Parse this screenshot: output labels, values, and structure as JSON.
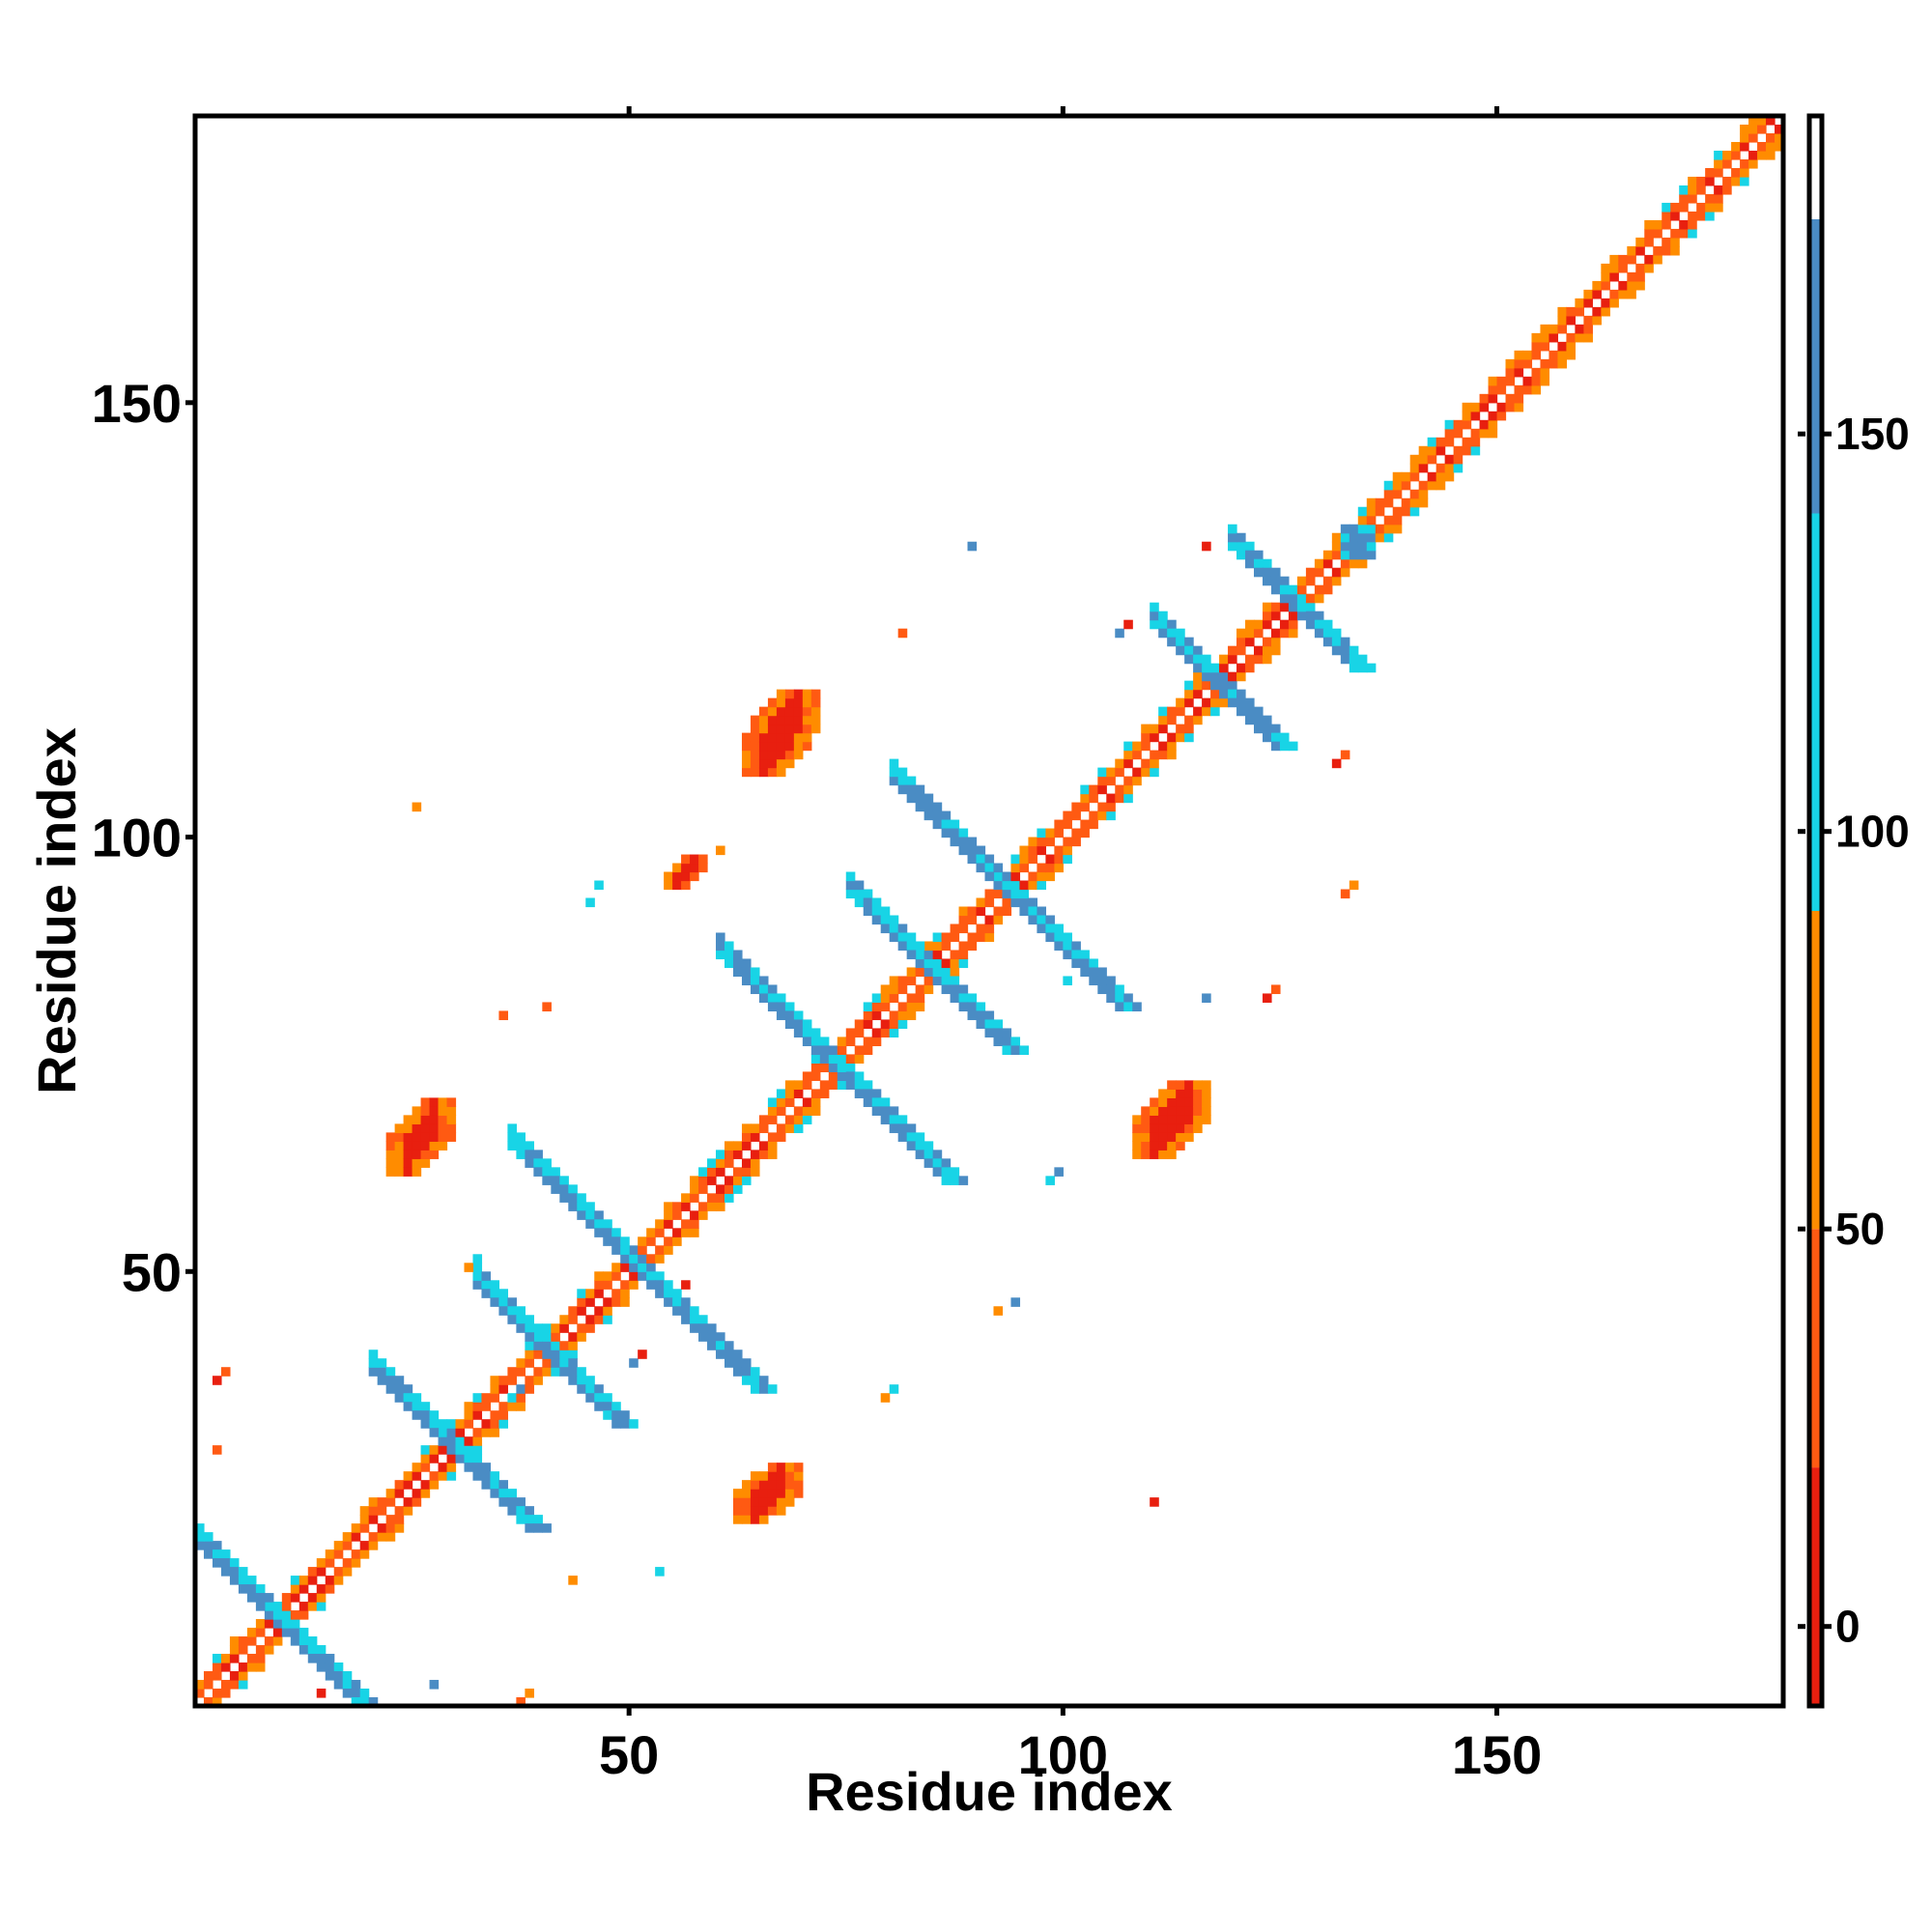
{
  "chart_data": {
    "type": "heatmap",
    "title": "",
    "xlabel": "Residue index",
    "ylabel": "Residue index",
    "xlim": [
      0,
      183
    ],
    "ylim": [
      0,
      183
    ],
    "x_ticks": [
      50,
      100,
      150
    ],
    "y_ticks": [
      50,
      100,
      150
    ],
    "x_tick_labels": [
      "50",
      "100",
      "150"
    ],
    "y_tick_labels": [
      "50",
      "100",
      "150"
    ],
    "grid": false,
    "legend": "colorbar right",
    "colorbar": {
      "range": [
        -10,
        190
      ],
      "ticks": [
        0,
        50,
        100,
        150
      ],
      "tick_labels": [
        "0",
        "50",
        "100",
        "150"
      ],
      "bands": [
        {
          "from": -10,
          "to": 20,
          "color": "#e81f0f"
        },
        {
          "from": 20,
          "to": 50,
          "color": "#ff5a12"
        },
        {
          "from": 50,
          "to": 90,
          "color": "#ff8c00"
        },
        {
          "from": 90,
          "to": 140,
          "color": "#18d4e6"
        },
        {
          "from": 140,
          "to": 177,
          "color": "#4a8cc4"
        },
        {
          "from": 177,
          "to": 190,
          "color": "#ffffff"
        }
      ]
    },
    "colors": {
      "diagonal_center": "#ffffff",
      "red": "#e81f0f",
      "red_orange": "#ff5a12",
      "orange": "#ff8c00",
      "cyan": "#18d4e6",
      "blue": "#4a8cc4"
    },
    "features": {
      "diagonal": {
        "from": 1,
        "to": 183
      },
      "antidiagonal_strands": [
        {
          "center": [
            10,
            10
          ],
          "half_length": 9
        },
        {
          "center": [
            30,
            30
          ],
          "half_length": 9
        },
        {
          "center": [
            41,
            41
          ],
          "half_length": 8
        },
        {
          "center": [
            51,
            51
          ],
          "half_length": 14
        },
        {
          "center": [
            74,
            74
          ],
          "half_length": 13
        },
        {
          "center": [
            85,
            85
          ],
          "half_length": 9
        },
        {
          "center": [
            94,
            94
          ],
          "half_length": 13
        },
        {
          "center": [
            118,
            118
          ],
          "half_length": 7
        },
        {
          "center": [
            127,
            127
          ],
          "half_length": 7
        }
      ],
      "square_blocks": [
        {
          "x": [
            133,
            136
          ],
          "y": [
            133,
            136
          ]
        }
      ],
      "red_clusters": [
        {
          "x": [
            63,
            70
          ],
          "y": [
            22,
            28
          ]
        },
        {
          "x": [
            23,
            30
          ],
          "y": [
            62,
            70
          ]
        },
        {
          "x": [
            109,
            117
          ],
          "y": [
            64,
            72
          ]
        },
        {
          "x": [
            64,
            72
          ],
          "y": [
            108,
            117
          ]
        },
        {
          "x": [
            55,
            59
          ],
          "y": [
            95,
            98
          ]
        }
      ],
      "scattered_contacts": [
        [
          3,
          38
        ],
        [
          3,
          30
        ],
        [
          26,
          104
        ],
        [
          37,
          36
        ],
        [
          90,
          134
        ],
        [
          111,
          24
        ],
        [
          133,
          94
        ],
        [
          93,
          46
        ],
        [
          46,
          93
        ],
        [
          107,
          124
        ],
        [
          117,
          134
        ],
        [
          36,
          80
        ],
        [
          80,
          36
        ],
        [
          47,
          95
        ],
        [
          95,
          47
        ],
        [
          124,
          82
        ],
        [
          82,
          124
        ],
        [
          61,
          99
        ],
        [
          99,
          61
        ],
        [
          28,
          3
        ],
        [
          15,
          2
        ],
        [
          38,
          1
        ],
        [
          44,
          15
        ],
        [
          54,
          16
        ],
        [
          51,
          40
        ],
        [
          57,
          49
        ],
        [
          41,
          81
        ],
        [
          32,
          51
        ],
        [
          101,
          84
        ],
        [
          117,
          82
        ],
        [
          132,
          109
        ]
      ]
    }
  }
}
